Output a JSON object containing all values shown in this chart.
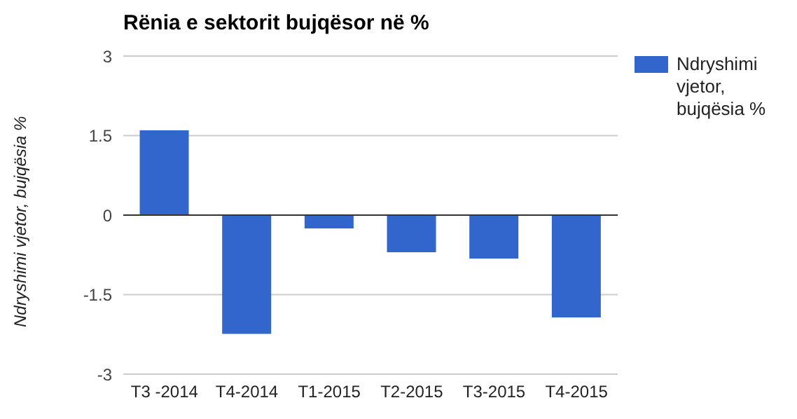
{
  "chart_data": {
    "type": "bar",
    "title": "Rënia e sektorit bujqësor në %",
    "ylabel": "Ndryshimi vjetor, bujqësia %",
    "categories": [
      "T3 -2014",
      "T4-2014",
      "T1-2015",
      "T2-2015",
      "T3-2015",
      "T4-2015"
    ],
    "series": [
      {
        "name": "Ndryshimi vjetor, bujqësia %",
        "color": "#3366cc",
        "values": [
          1.6,
          -2.24,
          -0.25,
          -0.7,
          -0.82,
          -1.93
        ]
      }
    ],
    "ylim": [
      -3,
      3
    ],
    "yticks": [
      -3,
      -1.5,
      0,
      1.5,
      3
    ],
    "grid": "y",
    "legend": "top right"
  }
}
